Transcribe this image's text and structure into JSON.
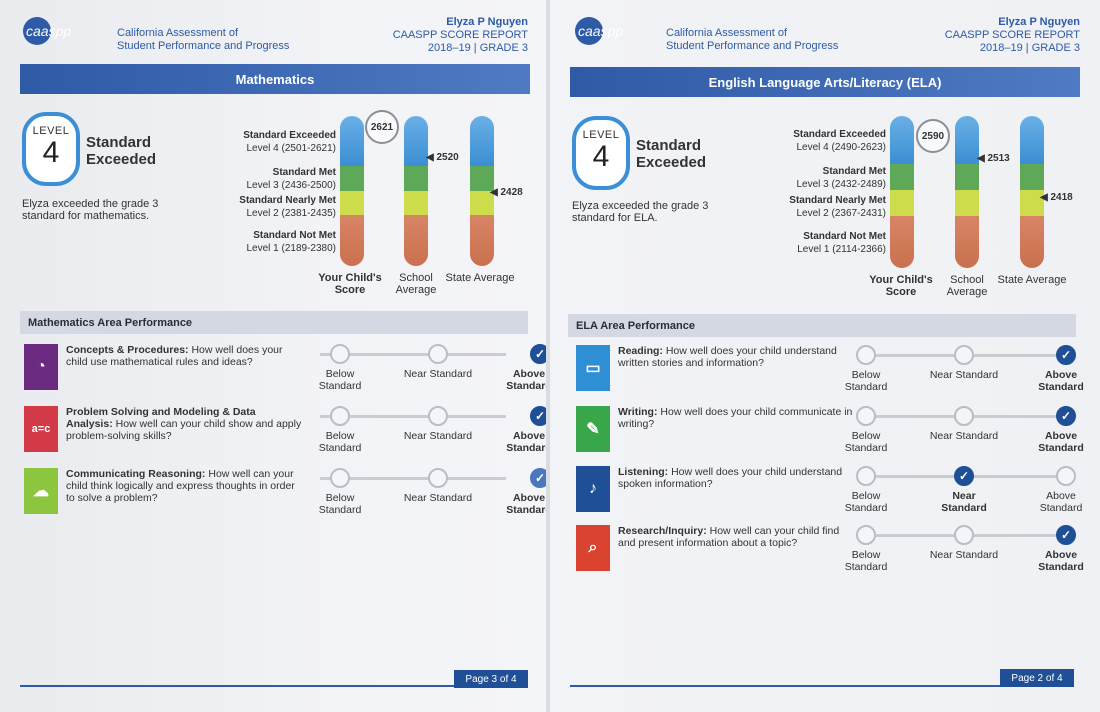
{
  "header": {
    "logo_text": "caaspp",
    "org_line1": "California Assessment of",
    "org_line2": "Student Performance and Progress",
    "student": "Elyza P Nguyen",
    "report": "CAASPP SCORE REPORT",
    "year_grade": "2018–19 | GRADE 3"
  },
  "math": {
    "subject": "Mathematics",
    "level_word": "LEVEL",
    "level_num": "4",
    "level_name": "Standard Exceeded",
    "desc": "Elyza exceeded the grade 3 standard for mathematics.",
    "bands": [
      {
        "name": "Standard Exceeded",
        "range": "Level 4 (2501-2621)"
      },
      {
        "name": "Standard Met",
        "range": "Level 3 (2436-2500)"
      },
      {
        "name": "Standard Nearly Met",
        "range": "Level 2 (2381-2435)"
      },
      {
        "name": "Standard Not Met",
        "range": "Level 1 (2189-2380)"
      }
    ],
    "scores": {
      "child": "2621",
      "school": "2520",
      "state": "2428"
    },
    "col_child": "Your Child's Score",
    "col_school": "School Average",
    "col_state": "State Average",
    "area_title": "Mathematics Area Performance",
    "claims": [
      {
        "title": "Concepts & Procedures:",
        "text": "How well does your child use mathematical rules and ideas?",
        "result": "Above Standard",
        "icon": "concepts-icon",
        "color": "#6a2a80"
      },
      {
        "title": "Problem Solving and Modeling & Data Analysis:",
        "text": "How well can your child show and apply problem-solving skills?",
        "result": "Above Standard",
        "icon": "problem-solving-icon",
        "color": "#d23a48"
      },
      {
        "title": "Communicating Reasoning:",
        "text": "How well can your child think logically and express thoughts in order to solve a problem?",
        "result": "Above Standard",
        "icon": "reasoning-icon",
        "color": "#8cc63f"
      }
    ],
    "page": "Page 3 of 4"
  },
  "ela": {
    "subject": "English Language Arts/Literacy (ELA)",
    "level_word": "LEVEL",
    "level_num": "4",
    "level_name": "Standard Exceeded",
    "desc": "Elyza exceeded the grade 3 standard for ELA.",
    "bands": [
      {
        "name": "Standard Exceeded",
        "range": "Level 4 (2490-2623)"
      },
      {
        "name": "Standard Met",
        "range": "Level 3 (2432-2489)"
      },
      {
        "name": "Standard Nearly Met",
        "range": "Level 2 (2367-2431)"
      },
      {
        "name": "Standard Not Met",
        "range": "Level 1 (2114-2366)"
      }
    ],
    "scores": {
      "child": "2590",
      "school": "2513",
      "state": "2418"
    },
    "col_child": "Your Child's Score",
    "col_school": "School Average",
    "col_state": "State Average",
    "area_title": "ELA Area Performance",
    "claims": [
      {
        "title": "Reading:",
        "text": "How well does your child understand written stories and information?",
        "result": "Above Standard",
        "icon": "reading-icon",
        "color": "#2f8fd4"
      },
      {
        "title": "Writing:",
        "text": "How well does your child communicate in writing?",
        "result": "Above Standard",
        "icon": "writing-icon",
        "color": "#3aa64a"
      },
      {
        "title": "Listening:",
        "text": "How well does your child understand spoken information?",
        "result": "Near Standard",
        "icon": "listening-icon",
        "color": "#1f4f96"
      },
      {
        "title": "Research/Inquiry:",
        "text": "How well can your child find and present information about a topic?",
        "result": "Above Standard",
        "icon": "research-icon",
        "color": "#d9432f"
      }
    ],
    "page": "Page 2 of 4"
  },
  "scale_labels": {
    "below": "Below Standard",
    "near": "Near Standard",
    "above": "Above Standard"
  }
}
